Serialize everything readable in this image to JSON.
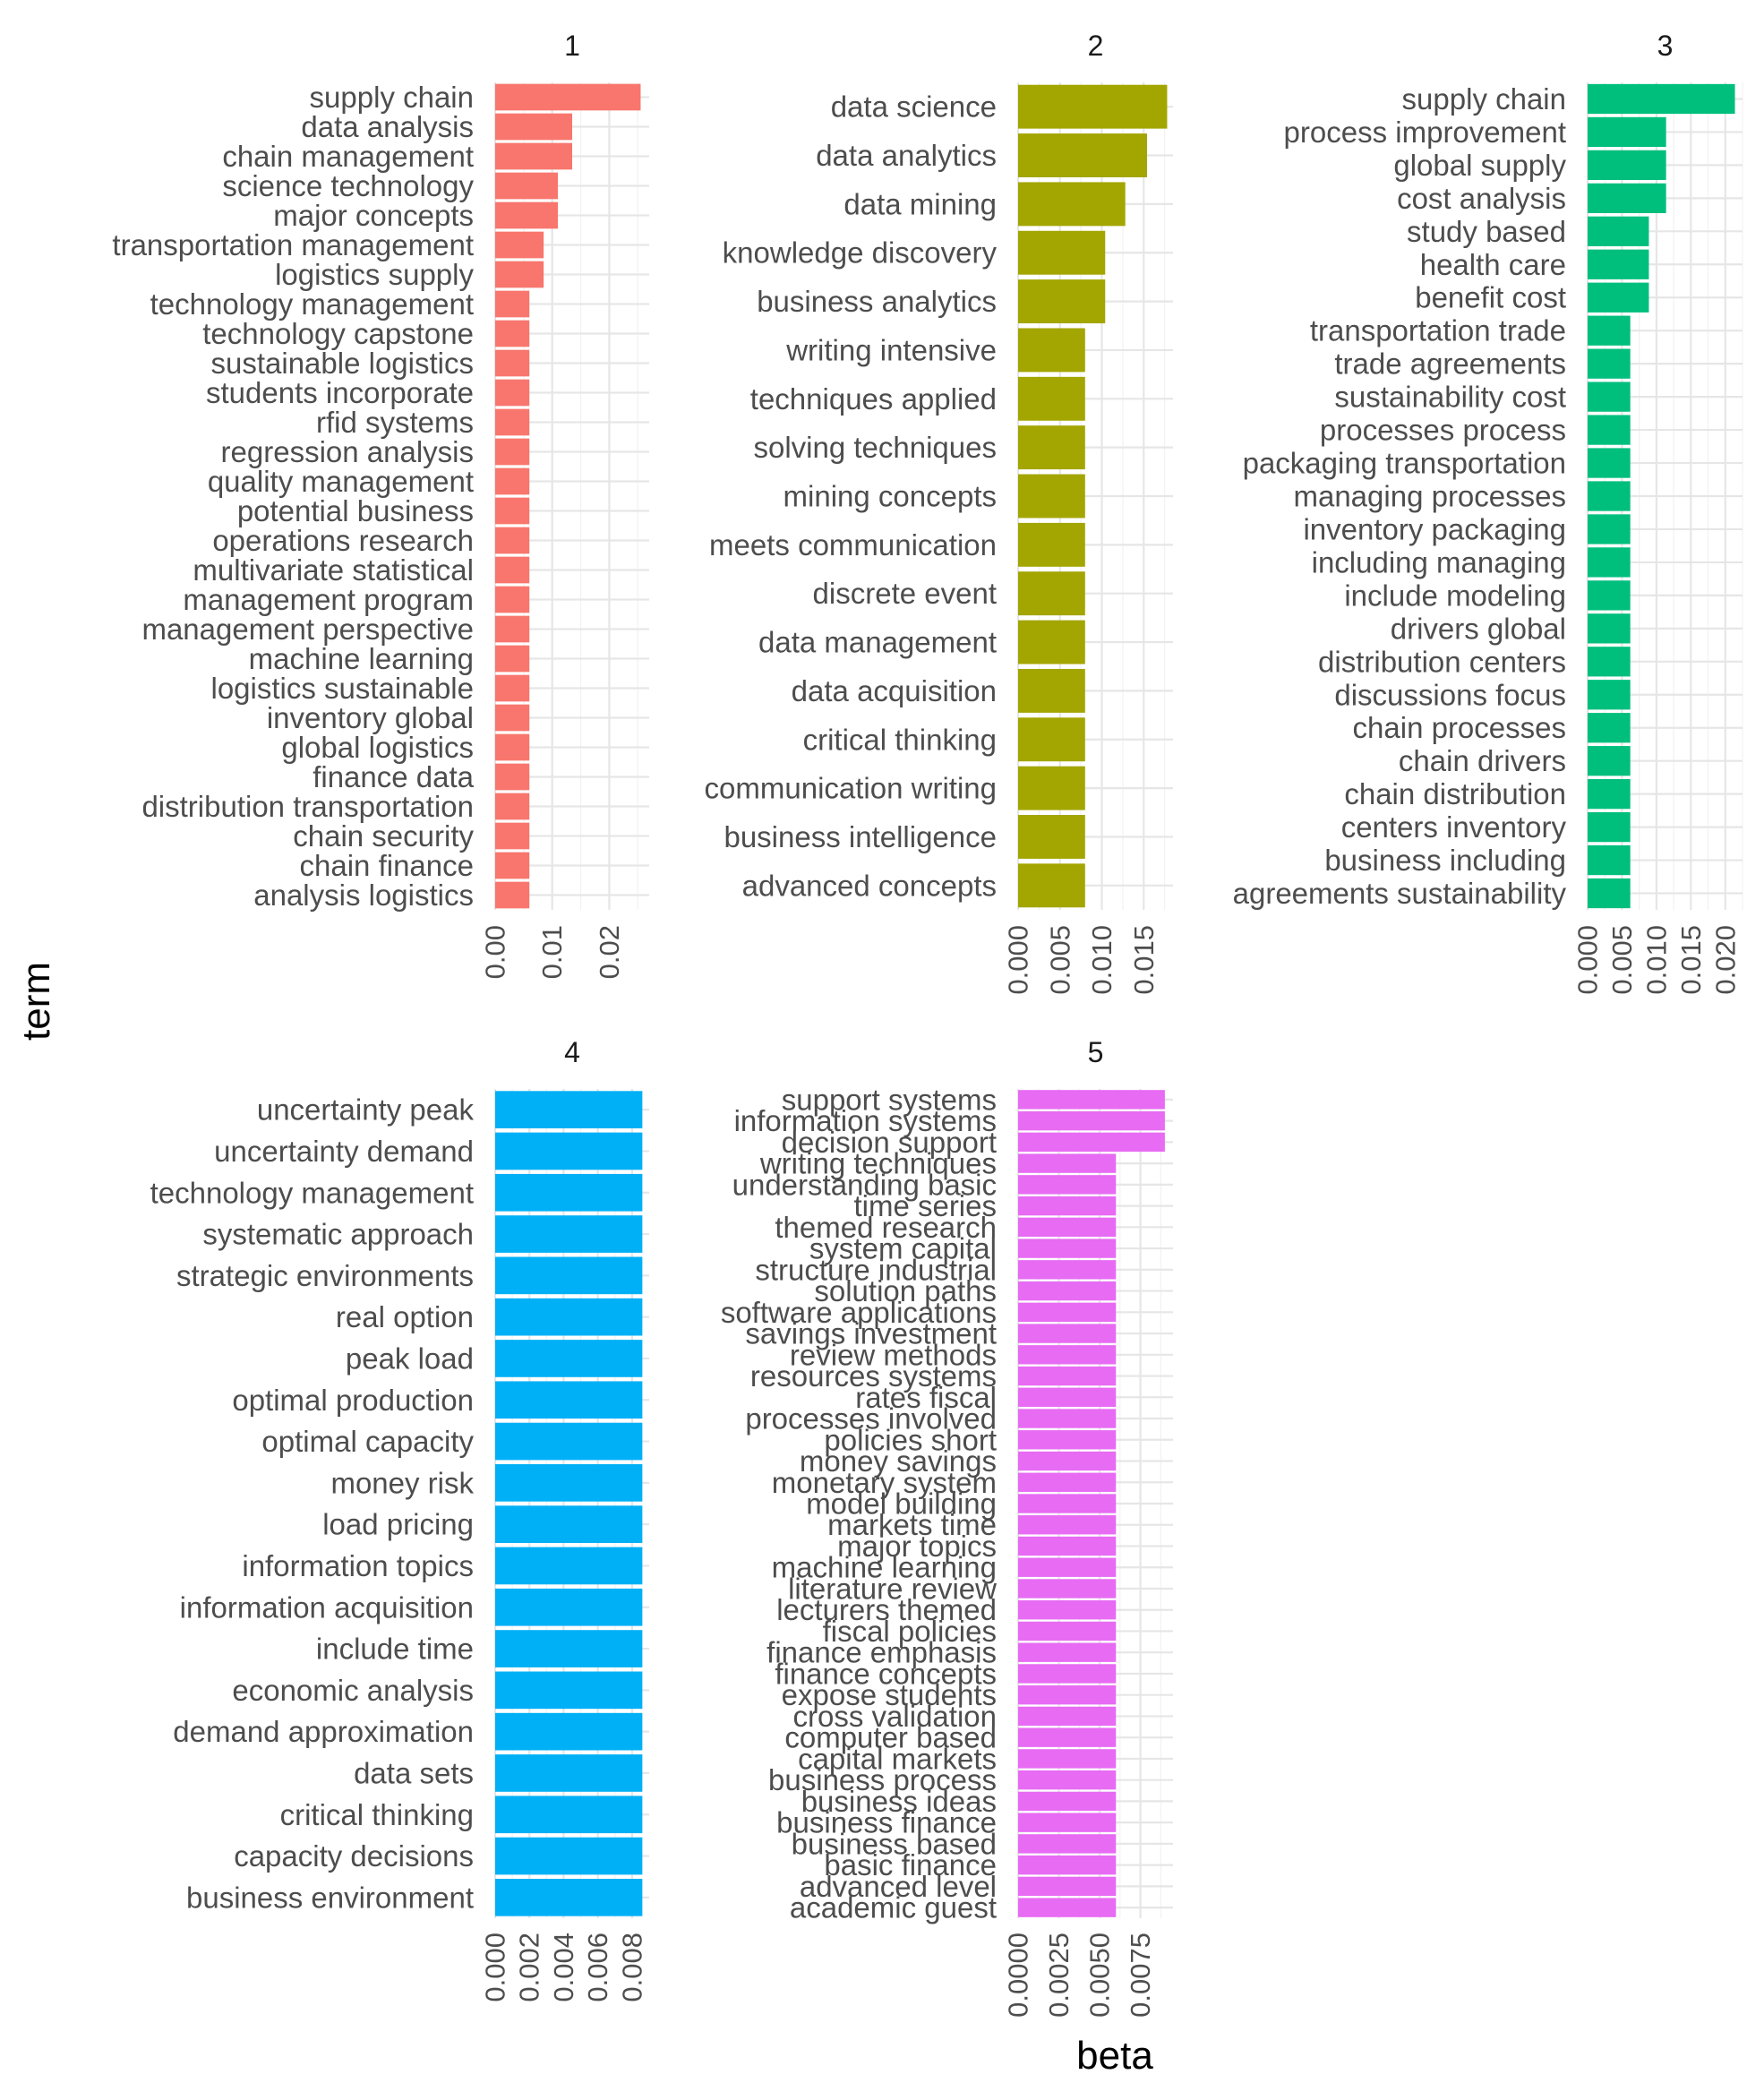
{
  "chart_data": {
    "type": "bar",
    "orientation": "horizontal",
    "faceted": true,
    "xlabel": "beta",
    "ylabel": "term",
    "grid": true,
    "legend": "none",
    "panels": [
      {
        "label": "1",
        "color": "#F8766D",
        "xlim": [
          0,
          0.027
        ],
        "ticks": [
          0,
          0.01,
          0.02
        ],
        "tick_labels": [
          "0.00",
          "0.01",
          "0.02"
        ],
        "terms": [
          "supply chain",
          "data analysis",
          "chain management",
          "science technology",
          "major concepts",
          "transportation management",
          "logistics supply",
          "technology management",
          "technology capstone",
          "sustainable logistics",
          "students incorporate",
          "rfid systems",
          "regression analysis",
          "quality management",
          "potential business",
          "operations research",
          "multivariate statistical",
          "management program",
          "management perspective",
          "machine learning",
          "logistics sustainable",
          "inventory global",
          "global logistics",
          "finance data",
          "distribution transportation",
          "chain security",
          "chain finance",
          "analysis logistics"
        ],
        "values": [
          0.0255,
          0.0135,
          0.0135,
          0.011,
          0.011,
          0.0085,
          0.0085,
          0.006,
          0.006,
          0.006,
          0.006,
          0.006,
          0.006,
          0.006,
          0.006,
          0.006,
          0.006,
          0.006,
          0.006,
          0.006,
          0.006,
          0.006,
          0.006,
          0.006,
          0.006,
          0.006,
          0.006,
          0.006
        ]
      },
      {
        "label": "2",
        "color": "#A3A500",
        "xlim": [
          0,
          0.0185
        ],
        "ticks": [
          0,
          0.005,
          0.01,
          0.015
        ],
        "tick_labels": [
          "0.000",
          "0.005",
          "0.010",
          "0.015"
        ],
        "terms": [
          "data science",
          "data analytics",
          "data mining",
          "knowledge discovery",
          "business analytics",
          "writing intensive",
          "techniques applied",
          "solving techniques",
          "mining concepts",
          "meets communication",
          "discrete event",
          "data management",
          "data acquisition",
          "critical thinking",
          "communication writing",
          "business intelligence",
          "advanced concepts"
        ],
        "values": [
          0.0178,
          0.0154,
          0.0128,
          0.0104,
          0.0104,
          0.008,
          0.008,
          0.008,
          0.008,
          0.008,
          0.008,
          0.008,
          0.008,
          0.008,
          0.008,
          0.008,
          0.008
        ]
      },
      {
        "label": "3",
        "color": "#00BF7D",
        "xlim": [
          0,
          0.0225
        ],
        "ticks": [
          0,
          0.005,
          0.01,
          0.015,
          0.02
        ],
        "tick_labels": [
          "0.000",
          "0.005",
          "0.010",
          "0.015",
          "0.020"
        ],
        "terms": [
          "supply chain",
          "process improvement",
          "global supply",
          "cost analysis",
          "study based",
          "health care",
          "benefit cost",
          "transportation trade",
          "trade agreements",
          "sustainability cost",
          "processes process",
          "packaging transportation",
          "managing processes",
          "inventory packaging",
          "including managing",
          "include modeling",
          "drivers global",
          "distribution centers",
          "discussions focus",
          "chain processes",
          "chain drivers",
          "chain distribution",
          "centers inventory",
          "business including",
          "agreements sustainability"
        ],
        "values": [
          0.0214,
          0.0114,
          0.0114,
          0.0114,
          0.0089,
          0.0089,
          0.0089,
          0.0062,
          0.0062,
          0.0062,
          0.0062,
          0.0062,
          0.0062,
          0.0062,
          0.0062,
          0.0062,
          0.0062,
          0.0062,
          0.0062,
          0.0062,
          0.0062,
          0.0062,
          0.0062,
          0.0062,
          0.0062
        ]
      },
      {
        "label": "4",
        "color": "#00B0F6",
        "xlim": [
          0,
          0.009
        ],
        "ticks": [
          0,
          0.002,
          0.004,
          0.006,
          0.008
        ],
        "tick_labels": [
          "0.000",
          "0.002",
          "0.004",
          "0.006",
          "0.008"
        ],
        "terms": [
          "uncertainty peak",
          "uncertainty demand",
          "technology management",
          "systematic approach",
          "strategic environments",
          "real option",
          "peak load",
          "optimal production",
          "optimal capacity",
          "money risk",
          "load pricing",
          "information topics",
          "information acquisition",
          "include time",
          "economic analysis",
          "demand approximation",
          "data sets",
          "critical thinking",
          "capacity decisions",
          "business environment"
        ],
        "values": [
          0.0086,
          0.0086,
          0.0086,
          0.0086,
          0.0086,
          0.0086,
          0.0086,
          0.0086,
          0.0086,
          0.0086,
          0.0086,
          0.0086,
          0.0086,
          0.0086,
          0.0086,
          0.0086,
          0.0086,
          0.0086,
          0.0086,
          0.0086
        ]
      },
      {
        "label": "5",
        "color": "#E76BF3",
        "xlim": [
          0,
          0.0095
        ],
        "ticks": [
          0,
          0.0025,
          0.005,
          0.0075
        ],
        "tick_labels": [
          "0.0000",
          "0.0025",
          "0.0050",
          "0.0075"
        ],
        "terms": [
          "support systems",
          "information systems",
          "decision support",
          "writing techniques",
          "understanding basic",
          "time series",
          "themed research",
          "system capital",
          "structure industrial",
          "solution paths",
          "software applications",
          "savings investment",
          "review methods",
          "resources systems",
          "rates fiscal",
          "processes involved",
          "policies short",
          "money savings",
          "monetary system",
          "model building",
          "markets time",
          "major topics",
          "machine learning",
          "literature review",
          "lecturers themed",
          "fiscal policies",
          "finance emphasis",
          "finance concepts",
          "expose students",
          "cross validation",
          "computer based",
          "capital markets",
          "business process",
          "business ideas",
          "business finance",
          "business based",
          "basic finance",
          "advanced level",
          "academic guest"
        ],
        "values": [
          0.009,
          0.009,
          0.009,
          0.006,
          0.006,
          0.006,
          0.006,
          0.006,
          0.006,
          0.006,
          0.006,
          0.006,
          0.006,
          0.006,
          0.006,
          0.006,
          0.006,
          0.006,
          0.006,
          0.006,
          0.006,
          0.006,
          0.006,
          0.006,
          0.006,
          0.006,
          0.006,
          0.006,
          0.006,
          0.006,
          0.006,
          0.006,
          0.006,
          0.006,
          0.006,
          0.006,
          0.006,
          0.006,
          0.006
        ]
      }
    ]
  }
}
